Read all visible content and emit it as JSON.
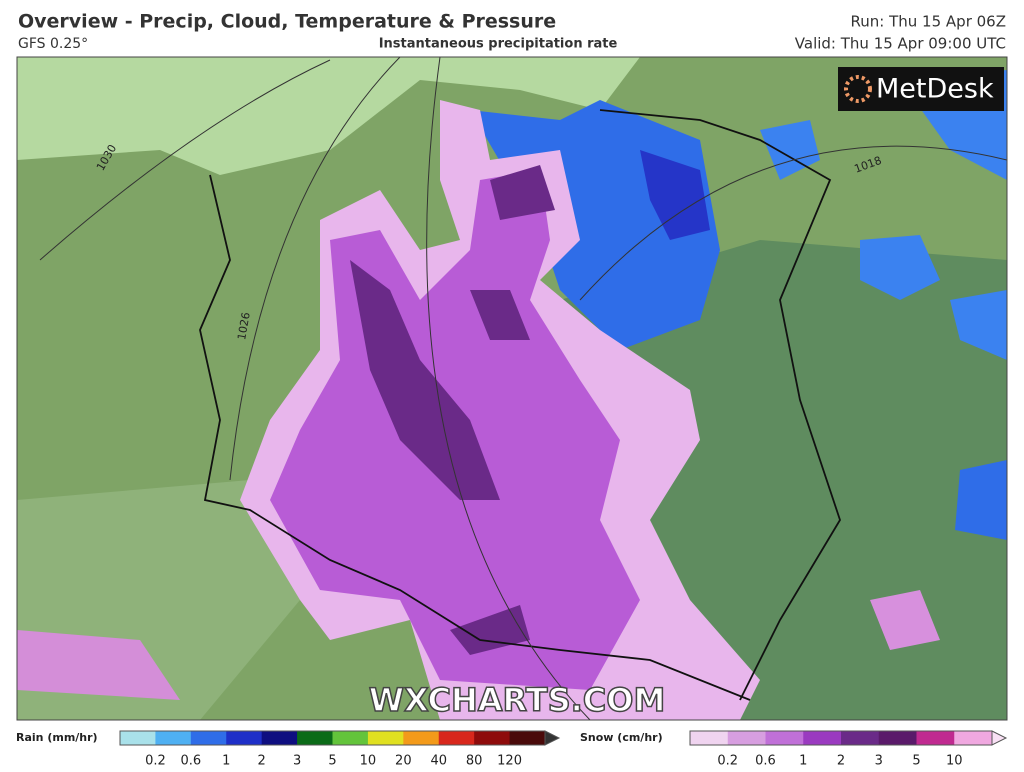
{
  "header": {
    "title": "Overview - Precip, Cloud, Temperature & Pressure",
    "model": "GFS 0.25°",
    "subtitle": "Instantaneous precipitation rate",
    "run": "Run: Thu 15 Apr 06Z",
    "valid": "Valid: Thu 15 Apr 09:00 UTC"
  },
  "logo": "MetDesk",
  "watermark": "WXCHARTS.COM",
  "isobars": [
    "1030",
    "1026",
    "1018"
  ],
  "legend": {
    "rain": {
      "label": "Rain (mm/hr)",
      "ticks": [
        "0.2",
        "0.6",
        "1",
        "2",
        "3",
        "5",
        "10",
        "20",
        "40",
        "80",
        "120"
      ]
    },
    "snow": {
      "label": "Snow (cm/hr)",
      "ticks": [
        "0.2",
        "0.6",
        "1",
        "2",
        "3",
        "5",
        "10"
      ]
    }
  }
}
